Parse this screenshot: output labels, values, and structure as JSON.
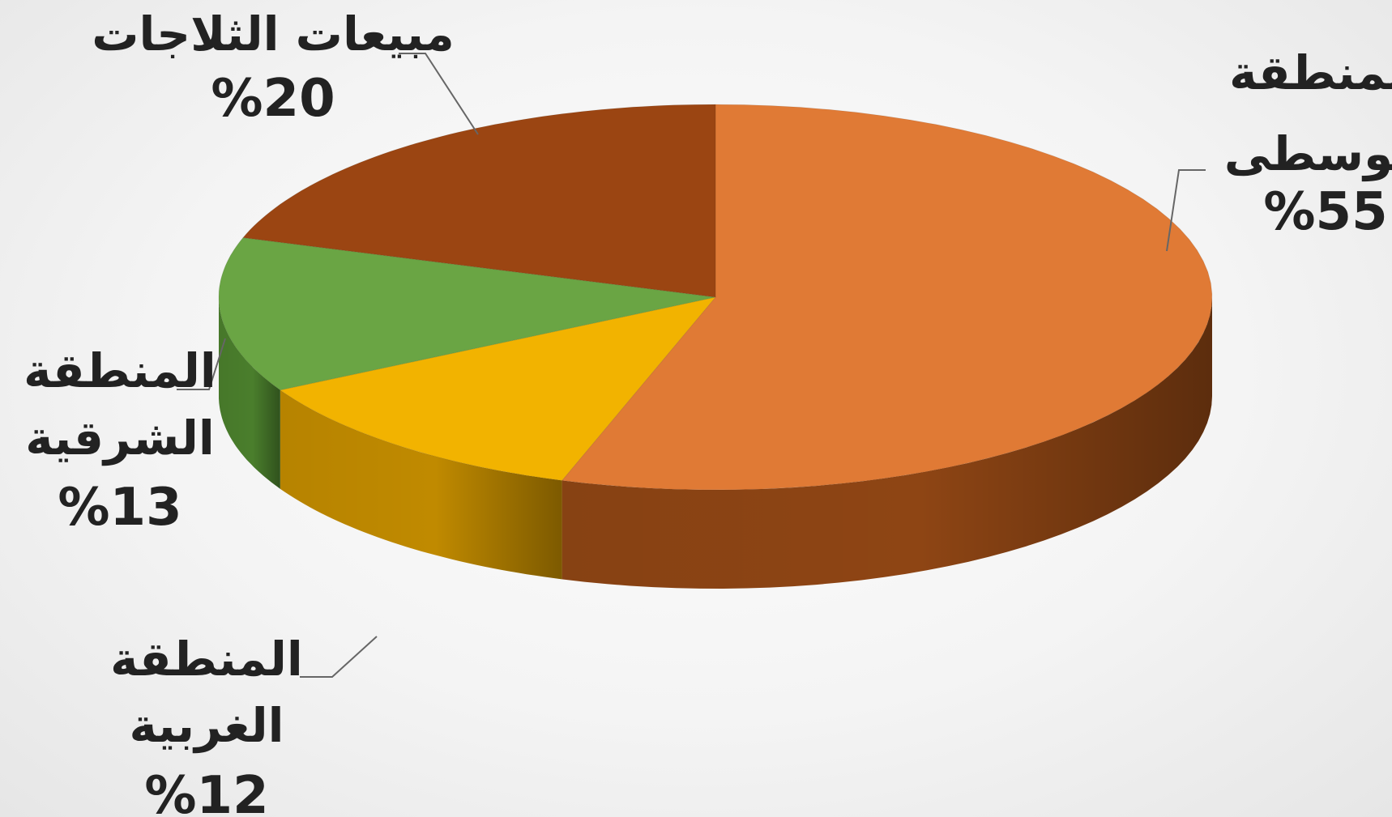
{
  "chart_data": {
    "type": "pie",
    "style": "3d",
    "legend": "none",
    "slices": [
      {
        "label": [
          "المنطقة",
          "الوسطى"
        ],
        "value": 55,
        "value_label": "%55",
        "color": "#e07a35",
        "side_color": "#8e4514"
      },
      {
        "label": [
          "المنطقة",
          "الغربية"
        ],
        "value": 12,
        "value_label": "%12",
        "color": "#f2b300",
        "side_color": "#c08a00"
      },
      {
        "label": [
          "المنطقة",
          "الشرقية"
        ],
        "value": 13,
        "value_label": "%13",
        "color": "#6aa544",
        "side_color": "#4a7e2c"
      },
      {
        "label": [
          "مبيعات الثلاجات"
        ],
        "value": 20,
        "value_label": "%20",
        "color": "#9b4512",
        "side_color": "#6e2e08"
      }
    ]
  }
}
